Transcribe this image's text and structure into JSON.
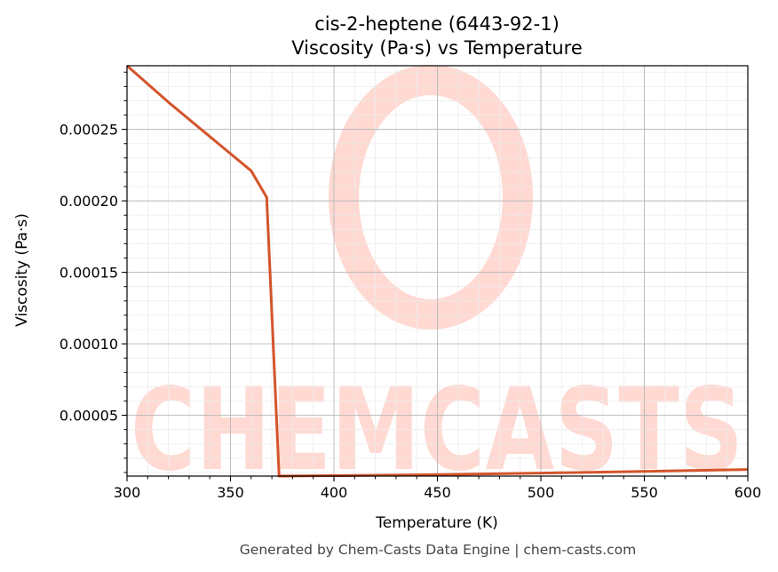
{
  "chart_data": {
    "type": "line",
    "title": "cis-2-heptene (6443-92-1)",
    "subtitle": "Viscosity (Pa·s) vs Temperature",
    "xlabel": "Temperature (K)",
    "ylabel": "Viscosity (Pa·s)",
    "xlim": [
      300,
      600
    ],
    "ylim": [
      7.5e-06,
      0.0002945
    ],
    "xticks": [
      300,
      350,
      400,
      450,
      500,
      550,
      600
    ],
    "xtick_labels": [
      "300",
      "350",
      "400",
      "450",
      "500",
      "550",
      "600"
    ],
    "yticks": [
      5e-05,
      0.0001,
      0.00015,
      0.0002,
      0.00025
    ],
    "ytick_labels": [
      "0.00005",
      "0.00010",
      "0.00015",
      "0.00020",
      "0.00025"
    ],
    "grid": true,
    "series": [
      {
        "color": "#d4542a",
        "points": [
          [
            300,
            0.0002945
          ],
          [
            320,
            0.000269
          ],
          [
            340,
            0.000245
          ],
          [
            360,
            0.000221
          ],
          [
            367.5,
            0.0002025
          ],
          [
            373.5,
            7.5e-06
          ],
          [
            400,
            7.8e-06
          ],
          [
            450,
            8.5e-06
          ],
          [
            500,
            9.6e-06
          ],
          [
            550,
            1.08e-05
          ],
          [
            600,
            1.21e-05
          ]
        ]
      }
    ],
    "watermark": "CHEMCASTS"
  },
  "footer": "Generated by Chem-Casts Data Engine | chem-casts.com"
}
